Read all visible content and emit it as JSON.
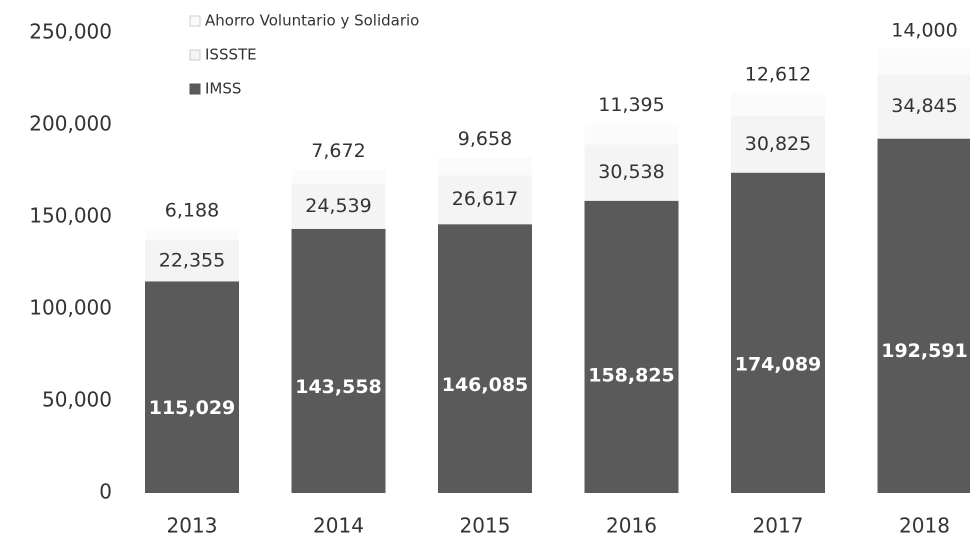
{
  "chart_data": {
    "type": "bar",
    "stacked": true,
    "categories": [
      "2013",
      "2014",
      "2015",
      "2016",
      "2017",
      "2018"
    ],
    "series": [
      {
        "name": "IMSS",
        "color": "#5a5a5a",
        "values": [
          115029,
          143558,
          146085,
          158825,
          174089,
          192591
        ],
        "value_labels": [
          "115,029",
          "143,558",
          "146,085",
          "158,825",
          "174,089",
          "192,591"
        ]
      },
      {
        "name": "ISSSTE",
        "color": "#f4f4f4",
        "values": [
          22355,
          24539,
          26617,
          30538,
          30825,
          34845
        ],
        "value_labels": [
          "22,355",
          "24,539",
          "26,617",
          "30,538",
          "30,825",
          "34,845"
        ]
      },
      {
        "name": "Ahorro Voluntario y Solidario",
        "color": "#fbfbfb",
        "values": [
          6188,
          7672,
          9658,
          11395,
          12612,
          14000
        ],
        "value_labels": [
          "6,188",
          "7,672",
          "9,658",
          "11,395",
          "12,612",
          "14,000"
        ]
      }
    ],
    "ylim": [
      0,
      250000
    ],
    "yticks": [
      0,
      {
        "value": 50000,
        "label": "50,000"
      },
      {
        "value": 100000,
        "label": "100,000"
      },
      {
        "value": 150000,
        "label": "150,000"
      },
      {
        "value": 200000,
        "label": "200,000"
      },
      {
        "value": 250000,
        "label": "250,000"
      }
    ],
    "grid": false
  }
}
